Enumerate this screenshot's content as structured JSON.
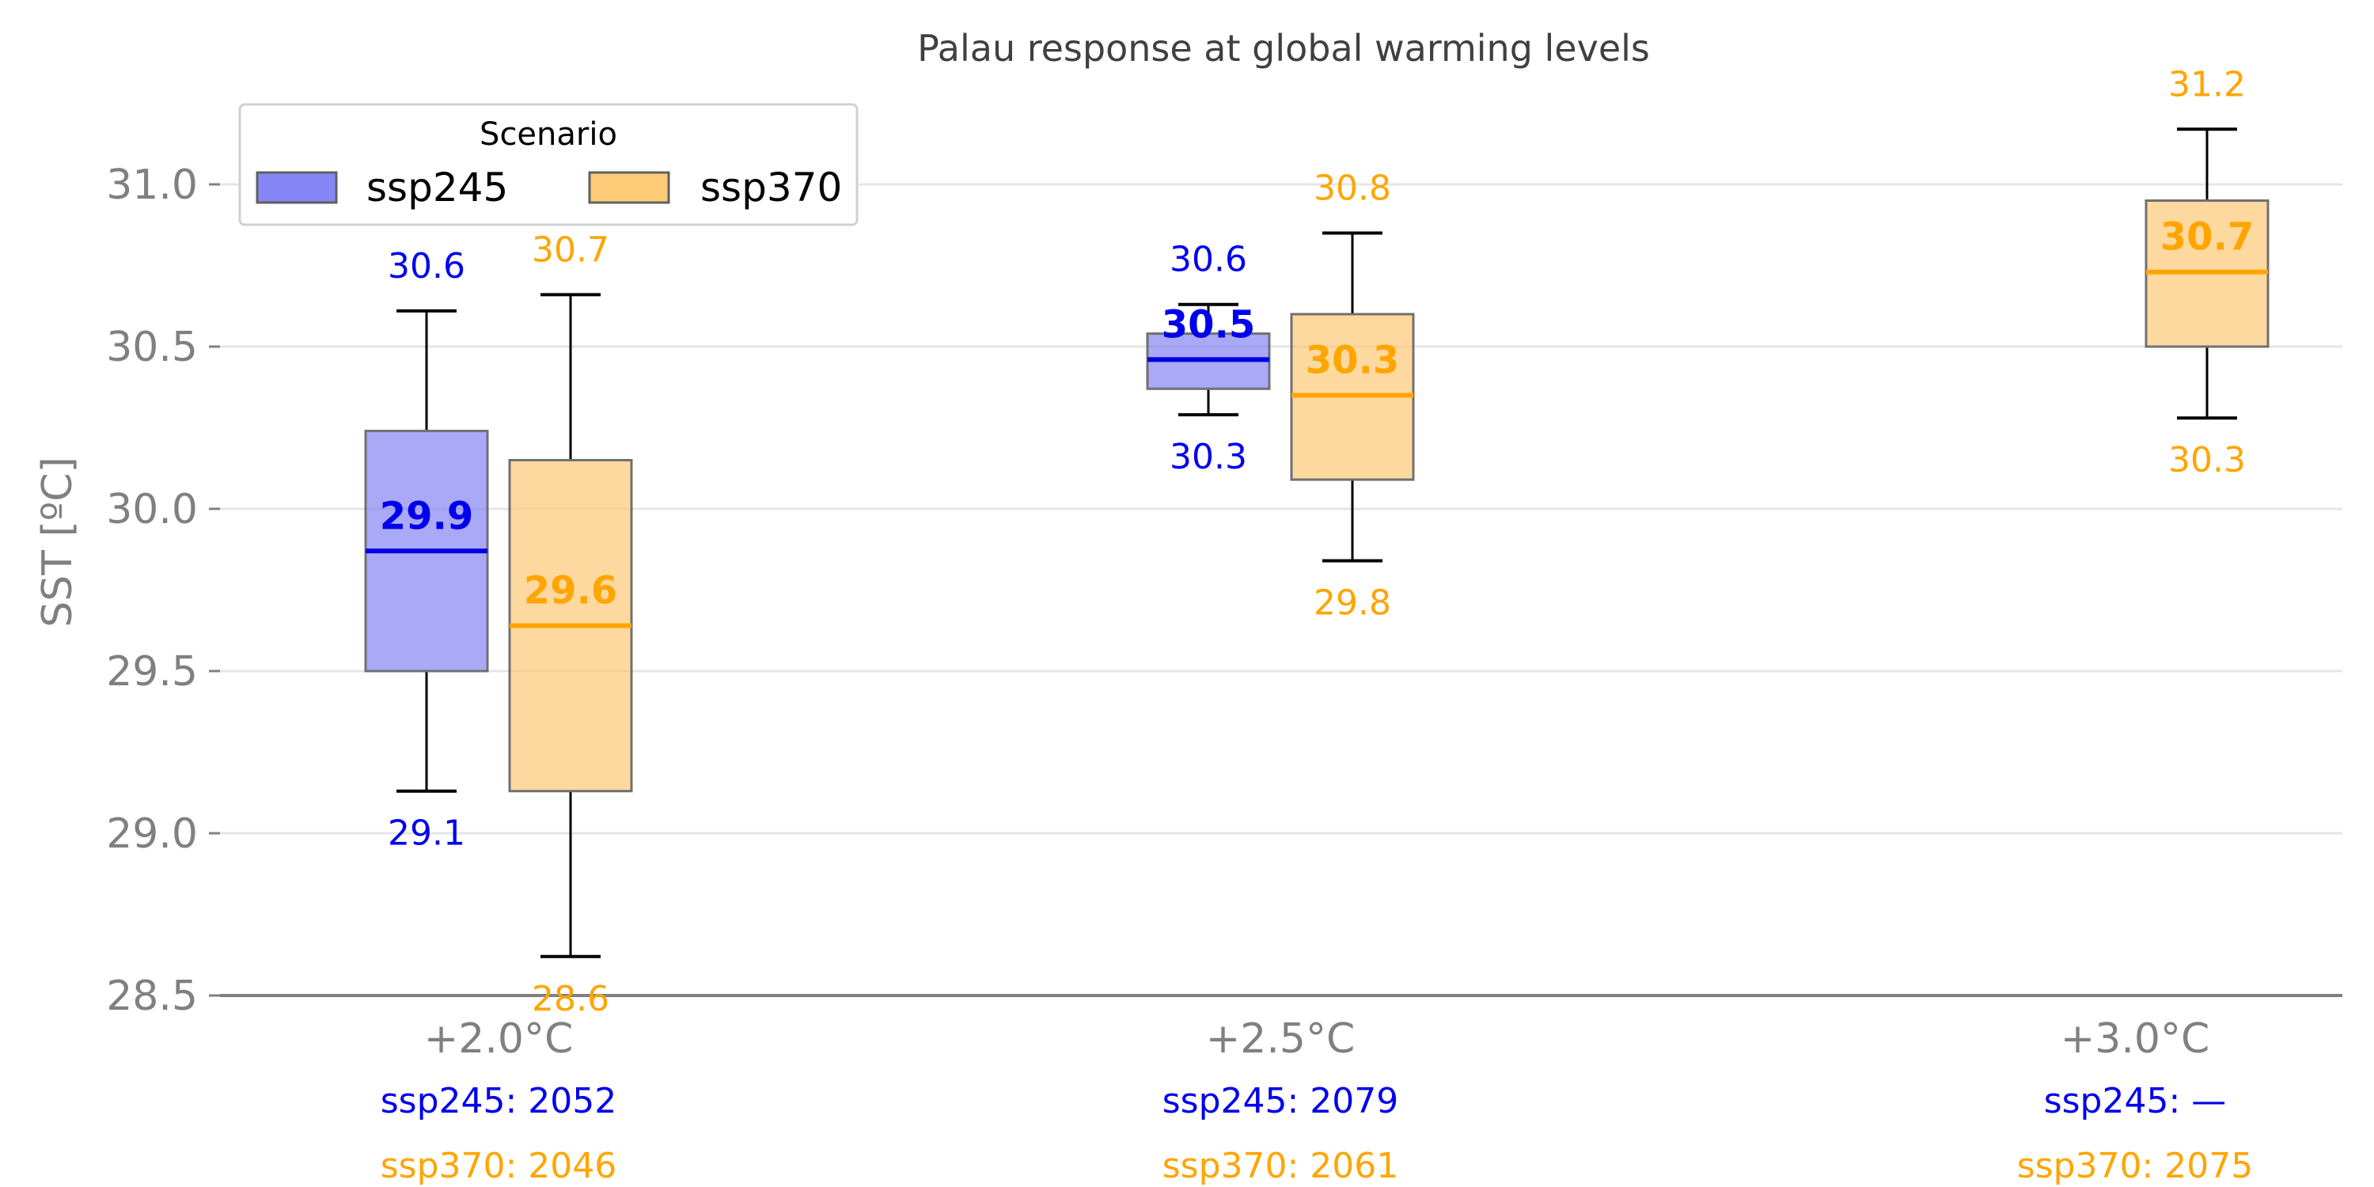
{
  "chart_data": {
    "type": "box",
    "title": "Palau response at global warming levels",
    "ylabel": "SST [ºC]",
    "xlabel": "",
    "ylim": [
      28.5,
      31.25
    ],
    "yticks": [
      28.5,
      29.0,
      29.5,
      30.0,
      30.5,
      31.0
    ],
    "ytick_labels": [
      "28.5",
      "29.0",
      "29.5",
      "30.0",
      "30.5",
      "31.0"
    ],
    "grid": "horizontal",
    "categories": [
      "+2.0°C",
      "+2.5°C",
      "+3.0°C"
    ],
    "legend": {
      "title": "Scenario",
      "position": "top-left"
    },
    "colors": {
      "ssp245": {
        "fill": "#7b7bf5",
        "line": "#0000e0",
        "text": "#0000ee"
      },
      "ssp370": {
        "fill": "#fdc56b",
        "line": "#ffa500",
        "text": "#ffa500"
      },
      "box_edge": "#707070",
      "grid": "#e6e6e6",
      "axis": "#808080"
    },
    "series": [
      {
        "name": "ssp245",
        "boxes": [
          {
            "category": "+2.0°C",
            "whisker_low": 29.13,
            "q1": 29.5,
            "median": 29.87,
            "q3": 30.24,
            "whisker_high": 30.61,
            "label_low": "29.1",
            "label_median": "29.9",
            "label_high": "30.6",
            "year_label": "ssp245: 2052"
          },
          {
            "category": "+2.5°C",
            "whisker_low": 30.29,
            "q1": 30.37,
            "median": 30.46,
            "q3": 30.54,
            "whisker_high": 30.63,
            "label_low": "30.3",
            "label_median": "30.5",
            "label_high": "30.6",
            "year_label": "ssp245: 2079"
          },
          {
            "category": "+3.0°C",
            "whisker_low": null,
            "q1": null,
            "median": null,
            "q3": null,
            "whisker_high": null,
            "label_low": "",
            "label_median": "",
            "label_high": "",
            "year_label": "ssp245: —"
          }
        ]
      },
      {
        "name": "ssp370",
        "boxes": [
          {
            "category": "+2.0°C",
            "whisker_low": 28.62,
            "q1": 29.13,
            "median": 29.64,
            "q3": 30.15,
            "whisker_high": 30.66,
            "label_low": "28.6",
            "label_median": "29.6",
            "label_high": "30.7",
            "year_label": "ssp370: 2046"
          },
          {
            "category": "+2.5°C",
            "whisker_low": 29.84,
            "q1": 30.09,
            "median": 30.35,
            "q3": 30.6,
            "whisker_high": 30.85,
            "label_low": "29.8",
            "label_median": "30.3",
            "label_high": "30.8",
            "year_label": "ssp370: 2061"
          },
          {
            "category": "+3.0°C",
            "whisker_low": 30.28,
            "q1": 30.5,
            "median": 30.73,
            "q3": 30.95,
            "whisker_high": 31.17,
            "label_low": "30.3",
            "label_median": "30.7",
            "label_high": "31.2",
            "year_label": "ssp370: 2075"
          }
        ]
      }
    ]
  }
}
